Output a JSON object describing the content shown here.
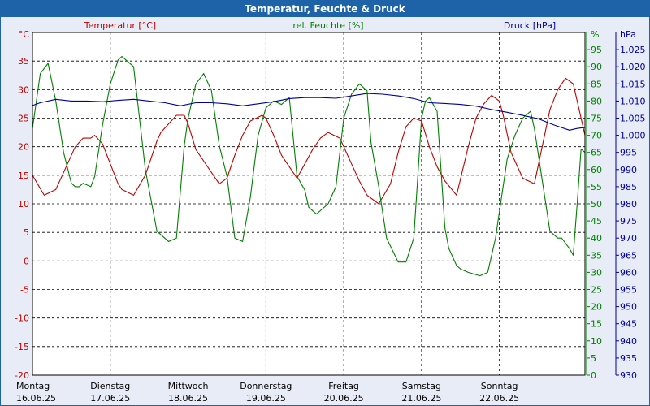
{
  "title": "Temperatur, Feuchte & Druck",
  "chart_data": {
    "type": "line",
    "grid": true,
    "legend": "top",
    "axes": {
      "temp": {
        "unit": "°C",
        "label": "Temperatur [°C]",
        "min": -20,
        "max": 40,
        "ticks": [
          -20,
          -15,
          -10,
          -5,
          0,
          5,
          10,
          15,
          20,
          25,
          30,
          35
        ],
        "color": "#c00000"
      },
      "hum": {
        "unit": "%",
        "label": "rel. Feuchte [%]",
        "min": 0,
        "max": 100,
        "ticks": [
          0,
          5,
          10,
          15,
          20,
          25,
          30,
          35,
          40,
          45,
          50,
          55,
          60,
          65,
          70,
          75,
          80,
          85,
          90,
          95
        ],
        "color": "#008000"
      },
      "press": {
        "unit": "hPa",
        "label": "Druck [hPa]",
        "min": 930,
        "max": 1030,
        "ticks": [
          "930",
          "935",
          "940",
          "945",
          "950",
          "955",
          "960",
          "965",
          "970",
          "975",
          "980",
          "985",
          "990",
          "995",
          "1.000",
          "1.005",
          "1.010",
          "1.015",
          "1.020",
          "1.025"
        ],
        "color": "#0000a0"
      }
    },
    "x_range": [
      0,
      7.1
    ],
    "days": [
      {
        "weekday": "Montag",
        "date": "16.06.25"
      },
      {
        "weekday": "Dienstag",
        "date": "17.06.25"
      },
      {
        "weekday": "Mittwoch",
        "date": "18.06.25"
      },
      {
        "weekday": "Donnerstag",
        "date": "19.06.25"
      },
      {
        "weekday": "Freitag",
        "date": "20.06.25"
      },
      {
        "weekday": "Samstag",
        "date": "21.06.25"
      },
      {
        "weekday": "Sonntag",
        "date": "22.06.25"
      }
    ],
    "series": [
      {
        "name": "Temperatur [°C]",
        "axis": "temp",
        "color": "#c00000",
        "x": [
          0,
          0.15,
          0.3,
          0.45,
          0.55,
          0.65,
          0.75,
          0.8,
          0.9,
          1.0,
          1.1,
          1.15,
          1.3,
          1.45,
          1.6,
          1.65,
          1.75,
          1.85,
          1.95,
          2.0,
          2.1,
          2.25,
          2.4,
          2.5,
          2.6,
          2.7,
          2.8,
          2.95,
          3.0,
          3.1,
          3.2,
          3.3,
          3.4,
          3.5,
          3.6,
          3.7,
          3.8,
          3.95,
          4.1,
          4.2,
          4.3,
          4.45,
          4.6,
          4.7,
          4.8,
          4.9,
          5.0,
          5.1,
          5.2,
          5.3,
          5.45,
          5.6,
          5.7,
          5.8,
          5.9,
          6.0,
          6.05,
          6.15,
          6.3,
          6.45,
          6.55,
          6.65,
          6.75,
          6.85,
          6.95,
          7.05,
          7.1
        ],
        "values": [
          15,
          11.5,
          12.5,
          17,
          20,
          21.5,
          21.5,
          22,
          20.5,
          17,
          13.5,
          12.5,
          11.5,
          15,
          21,
          22.5,
          24,
          25.5,
          25.5,
          24,
          19.5,
          16.5,
          13.5,
          14.5,
          18.5,
          22,
          24.5,
          25.5,
          25,
          22,
          18.5,
          16.5,
          14.5,
          17,
          19.5,
          21.5,
          22.5,
          21.5,
          17,
          14,
          11.5,
          10,
          13.5,
          19,
          23.5,
          25,
          24.5,
          20,
          16.5,
          14,
          11.5,
          20,
          25,
          27.5,
          29,
          28,
          25.5,
          19,
          14.5,
          13.5,
          20,
          26.5,
          30,
          32,
          31,
          25,
          22
        ]
      },
      {
        "name": "rel. Feuchte [%]",
        "axis": "hum",
        "color": "#008000",
        "x": [
          0,
          0.1,
          0.2,
          0.3,
          0.4,
          0.5,
          0.55,
          0.6,
          0.65,
          0.75,
          0.8,
          0.9,
          1.0,
          1.1,
          1.15,
          1.3,
          1.45,
          1.6,
          1.7,
          1.75,
          1.85,
          1.95,
          2.0,
          2.1,
          2.2,
          2.3,
          2.4,
          2.5,
          2.6,
          2.7,
          2.8,
          2.9,
          3.0,
          3.1,
          3.2,
          3.3,
          3.4,
          3.5,
          3.55,
          3.65,
          3.7,
          3.8,
          3.9,
          4.0,
          4.1,
          4.2,
          4.3,
          4.35,
          4.45,
          4.55,
          4.7,
          4.8,
          4.9,
          5.0,
          5.05,
          5.1,
          5.2,
          5.3,
          5.35,
          5.45,
          5.5,
          5.6,
          5.75,
          5.85,
          5.95,
          6.1,
          6.2,
          6.3,
          6.4,
          6.45,
          6.55,
          6.65,
          6.75,
          6.8,
          6.9,
          6.95,
          7.0,
          7.05,
          7.1
        ],
        "values": [
          72,
          88,
          91,
          80,
          65,
          56,
          55,
          55,
          56,
          55,
          58,
          73,
          85,
          92,
          93,
          90,
          60,
          42,
          40,
          39,
          40,
          67,
          75,
          85,
          88,
          83,
          67,
          58,
          40,
          39,
          52,
          70,
          78,
          80,
          79,
          81,
          58,
          54,
          49,
          47,
          48,
          50,
          55,
          75,
          82,
          85,
          83,
          68,
          55,
          40,
          33,
          33,
          40,
          75,
          80,
          81,
          77,
          43,
          37,
          32,
          31,
          30,
          29,
          30,
          40,
          63,
          70,
          75,
          77,
          72,
          57,
          42,
          40,
          40,
          37,
          35,
          50,
          66,
          65
        ]
      },
      {
        "name": "Druck [hPa]",
        "axis": "press",
        "color": "#0000a0",
        "x": [
          0,
          0.1,
          0.3,
          0.5,
          0.7,
          0.9,
          1.1,
          1.3,
          1.5,
          1.7,
          1.9,
          2.1,
          2.3,
          2.5,
          2.7,
          2.9,
          3.1,
          3.3,
          3.5,
          3.7,
          3.9,
          4.1,
          4.3,
          4.5,
          4.7,
          4.9,
          5.1,
          5.3,
          5.5,
          5.7,
          5.9,
          6.1,
          6.3,
          6.5,
          6.7,
          6.9,
          7.0,
          7.1
        ],
        "values": [
          1008.7,
          1009.5,
          1010.5,
          1010,
          1010,
          1009.8,
          1010.2,
          1010.5,
          1010,
          1009.5,
          1008.6,
          1009.5,
          1009.5,
          1009.2,
          1008.6,
          1009.2,
          1009.8,
          1010.7,
          1011,
          1011,
          1010.8,
          1011.5,
          1012.2,
          1012,
          1011.5,
          1010.7,
          1009.5,
          1009.3,
          1009,
          1008.5,
          1007.5,
          1006.7,
          1005.8,
          1004.8,
          1003,
          1001.5,
          1002,
          1002.3
        ]
      }
    ]
  }
}
